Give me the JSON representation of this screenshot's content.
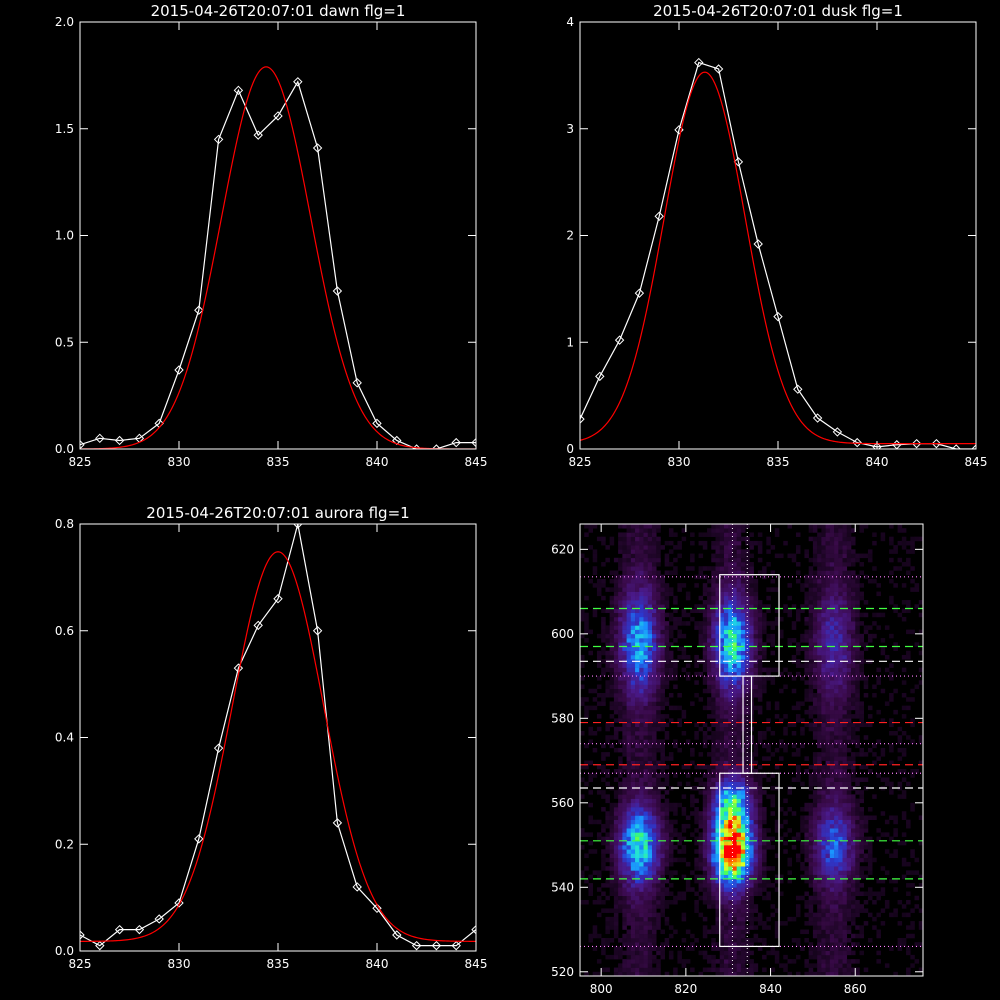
{
  "figure": {
    "background": "#000000",
    "axis_color": "#ffffff"
  },
  "chart_data": [
    {
      "id": "dawn",
      "type": "line",
      "title": "2015-04-26T20:07:01 dawn flg=1",
      "xlim": [
        825,
        845
      ],
      "ylim": [
        0,
        2.0
      ],
      "xticks": [
        825,
        830,
        835,
        840,
        845
      ],
      "xtick_labels": [
        "825",
        "830",
        "835",
        "840",
        "845"
      ],
      "yticks": [
        0.0,
        0.5,
        1.0,
        1.5,
        2.0
      ],
      "ytick_labels": [
        "0.0",
        "0.5",
        "1.0",
        "1.5",
        "2.0"
      ],
      "series": [
        {
          "style": "line-diamond",
          "color": "#ffffff",
          "x": [
            825,
            826,
            827,
            828,
            829,
            830,
            831,
            832,
            833,
            834,
            835,
            836,
            837,
            838,
            839,
            840,
            841,
            842,
            843,
            844,
            845
          ],
          "y": [
            0.02,
            0.05,
            0.04,
            0.05,
            0.12,
            0.37,
            0.65,
            1.45,
            1.68,
            1.47,
            1.56,
            1.72,
            1.41,
            0.74,
            0.31,
            0.12,
            0.04,
            0.0,
            0.0,
            0.03,
            0.03
          ]
        },
        {
          "style": "gaussian-fit",
          "color": "#ff0000",
          "amplitude": 1.79,
          "center": 834.4,
          "sigma": 2.25,
          "offset": 0.0
        }
      ]
    },
    {
      "id": "dusk",
      "type": "line",
      "title": "2015-04-26T20:07:01 dusk flg=1",
      "xlim": [
        825,
        845
      ],
      "ylim": [
        0,
        4
      ],
      "xticks": [
        825,
        830,
        835,
        840,
        845
      ],
      "xtick_labels": [
        "825",
        "830",
        "835",
        "840",
        "845"
      ],
      "yticks": [
        0,
        1,
        2,
        3,
        4
      ],
      "ytick_labels": [
        "0",
        "1",
        "2",
        "3",
        "4"
      ],
      "series": [
        {
          "style": "line-diamond",
          "color": "#ffffff",
          "x": [
            825,
            826,
            827,
            828,
            829,
            830,
            831,
            832,
            833,
            834,
            835,
            836,
            837,
            838,
            839,
            840,
            841,
            842,
            843,
            844,
            845
          ],
          "y": [
            0.28,
            0.68,
            1.02,
            1.46,
            2.18,
            2.99,
            3.62,
            3.56,
            2.69,
            1.92,
            1.24,
            0.56,
            0.29,
            0.16,
            0.06,
            0.02,
            0.04,
            0.05,
            0.05,
            0.0,
            0.0
          ]
        },
        {
          "style": "gaussian-fit",
          "color": "#ff0000",
          "amplitude": 3.48,
          "center": 831.3,
          "sigma": 2.05,
          "offset": 0.05
        }
      ]
    },
    {
      "id": "aurora",
      "type": "line",
      "title": "2015-04-26T20:07:01 aurora flg=1",
      "xlim": [
        825,
        845
      ],
      "ylim": [
        0,
        0.8
      ],
      "xticks": [
        825,
        830,
        835,
        840,
        845
      ],
      "xtick_labels": [
        "825",
        "830",
        "835",
        "840",
        "845"
      ],
      "yticks": [
        0.0,
        0.2,
        0.4,
        0.6,
        0.8
      ],
      "ytick_labels": [
        "0.0",
        "0.2",
        "0.4",
        "0.6",
        "0.8"
      ],
      "series": [
        {
          "style": "line-diamond",
          "color": "#ffffff",
          "x": [
            825,
            826,
            827,
            828,
            829,
            830,
            831,
            832,
            833,
            834,
            835,
            836,
            837,
            838,
            839,
            840,
            841,
            842,
            843,
            844,
            845
          ],
          "y": [
            0.03,
            0.01,
            0.04,
            0.04,
            0.06,
            0.09,
            0.21,
            0.38,
            0.53,
            0.61,
            0.66,
            0.8,
            0.6,
            0.24,
            0.12,
            0.08,
            0.03,
            0.01,
            0.01,
            0.01,
            0.04
          ]
        },
        {
          "style": "gaussian-fit",
          "color": "#ff0000",
          "amplitude": 0.73,
          "center": 835.0,
          "sigma": 2.3,
          "offset": 0.018
        }
      ]
    },
    {
      "id": "spectral-image",
      "type": "heatmap",
      "title": "",
      "xlim": [
        795,
        876
      ],
      "ylim": [
        519,
        626
      ],
      "xticks": [
        800,
        820,
        840,
        860
      ],
      "xtick_labels": [
        "800",
        "820",
        "840",
        "860"
      ],
      "yticks": [
        520,
        540,
        560,
        580,
        600,
        620
      ],
      "ytick_labels": [
        "520",
        "540",
        "560",
        "580",
        "600",
        "620"
      ],
      "colormap": [
        "#000000",
        "#3a0a4a",
        "#4a1a8a",
        "#2a3ad0",
        "#1a90ff",
        "#20e0e0",
        "#40ff60",
        "#e0ff20",
        "#ff8000",
        "#ff0000"
      ],
      "emission_columns": [
        {
          "center_x": 809,
          "width": 3.2,
          "blobs": [
            {
              "y": 550,
              "sigma": 6,
              "peak": 0.5
            },
            {
              "y": 598,
              "sigma": 8,
              "peak": 0.38
            }
          ]
        },
        {
          "center_x": 831,
          "width": 3.0,
          "blobs": [
            {
              "y": 549,
              "sigma": 5.5,
              "peak": 1.0
            },
            {
              "y": 560,
              "sigma": 4,
              "peak": 0.45
            },
            {
              "y": 598,
              "sigma": 7,
              "peak": 0.5
            }
          ]
        },
        {
          "center_x": 855,
          "width": 3.2,
          "blobs": [
            {
              "y": 550,
              "sigma": 6,
              "peak": 0.3
            },
            {
              "y": 598,
              "sigma": 8,
              "peak": 0.18
            }
          ]
        }
      ],
      "vertical_dotted_lines_x": [
        831,
        834.5
      ],
      "horizontal_lines": [
        {
          "y": 613.5,
          "style": "dotted",
          "color": "#ff80ff"
        },
        {
          "y": 606,
          "style": "dashed",
          "color": "#40ff40"
        },
        {
          "y": 597,
          "style": "dashed",
          "color": "#40ff40"
        },
        {
          "y": 593.5,
          "style": "dashed",
          "color": "#ffffff"
        },
        {
          "y": 590,
          "style": "dotted",
          "color": "#ff80ff"
        },
        {
          "y": 579,
          "style": "dashed",
          "color": "#ff2020"
        },
        {
          "y": 574,
          "style": "dotted",
          "color": "#ff80ff"
        },
        {
          "y": 569,
          "style": "dashed",
          "color": "#ff2020"
        },
        {
          "y": 567,
          "style": "dotted",
          "color": "#ff80ff"
        },
        {
          "y": 563.5,
          "style": "dashed",
          "color": "#ffffff"
        },
        {
          "y": 551,
          "style": "dashed",
          "color": "#40ff40"
        },
        {
          "y": 542,
          "style": "dashed",
          "color": "#40ff40"
        },
        {
          "y": 526,
          "style": "dotted",
          "color": "#ff80ff"
        }
      ],
      "boxes": [
        {
          "x0": 828,
          "x1": 842,
          "y0": 590,
          "y1": 614
        },
        {
          "x0": 828,
          "x1": 842,
          "y0": 526,
          "y1": 567
        }
      ],
      "connector": {
        "x0": 833.5,
        "x1": 835.5,
        "y0": 567,
        "y1": 590
      }
    }
  ]
}
